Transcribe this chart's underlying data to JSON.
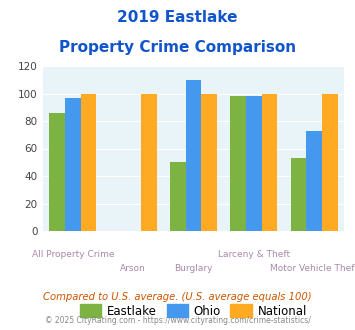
{
  "title_line1": "2019 Eastlake",
  "title_line2": "Property Crime Comparison",
  "categories": [
    "All Property Crime",
    "Arson",
    "Burglary",
    "Larceny & Theft",
    "Motor Vehicle Theft"
  ],
  "eastlake": [
    86,
    0,
    50,
    98,
    53
  ],
  "ohio": [
    97,
    0,
    110,
    98,
    73
  ],
  "national": [
    100,
    100,
    100,
    100,
    100
  ],
  "color_eastlake": "#7cb342",
  "color_ohio": "#4499ee",
  "color_national": "#ffaa22",
  "ylabel_max": 120,
  "yticks": [
    0,
    20,
    40,
    60,
    80,
    100,
    120
  ],
  "legend_labels": [
    "Eastlake",
    "Ohio",
    "National"
  ],
  "footnote1": "Compared to U.S. average. (U.S. average equals 100)",
  "footnote2": "© 2025 CityRating.com - https://www.cityrating.com/crime-statistics/",
  "bg_color": "#e8f4f8",
  "title_color": "#1155cc",
  "xticklabel_color": "#aa88aa",
  "footnote1_color": "#cc5500",
  "footnote2_color": "#888888"
}
